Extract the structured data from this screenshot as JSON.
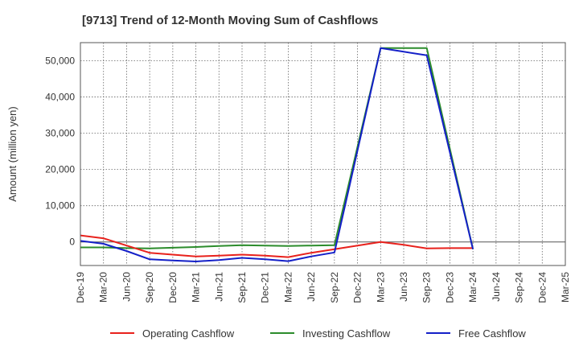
{
  "chart_data": {
    "type": "line",
    "title": "[9713]  Trend of 12-Month Moving Sum of Cashflows",
    "ylabel": "Amount (million yen)",
    "xlabel": "",
    "ylim": [
      -6500,
      55000
    ],
    "yticks": [
      0,
      10000,
      20000,
      30000,
      40000,
      50000
    ],
    "ytick_labels": [
      "0",
      "10,000",
      "20,000",
      "30,000",
      "40,000",
      "50,000"
    ],
    "categories": [
      "Dec-19",
      "Mar-20",
      "Jun-20",
      "Sep-20",
      "Dec-20",
      "Mar-21",
      "Jun-21",
      "Sep-21",
      "Dec-21",
      "Mar-22",
      "Jun-22",
      "Sep-22",
      "Dec-22",
      "Mar-23",
      "Jun-23",
      "Sep-23",
      "Dec-23",
      "Mar-24",
      "Jun-24",
      "Sep-24",
      "Dec-24",
      "Mar-25"
    ],
    "grid": true,
    "legend_position": "bottom",
    "series": [
      {
        "name": "Operating Cashflow",
        "color": "#e8211c",
        "values": [
          1800,
          1000,
          -1000,
          -3000,
          -3500,
          -4000,
          -3800,
          -3500,
          -3800,
          -4200,
          -3000,
          -2000,
          -1000,
          0,
          -800,
          -1800,
          -1700,
          -1700,
          null,
          null,
          null,
          null
        ]
      },
      {
        "name": "Investing Cashflow",
        "color": "#2c8c2c",
        "values": [
          -1500,
          -1500,
          -1700,
          -1800,
          -1600,
          -1400,
          -1100,
          -900,
          -1000,
          -1100,
          -1000,
          -900,
          null,
          53500,
          53500,
          53500,
          null,
          -2000,
          null,
          null,
          null,
          null
        ]
      },
      {
        "name": "Free Cashflow",
        "color": "#1420c8",
        "values": [
          300,
          -500,
          -2500,
          -4800,
          -5100,
          -5400,
          -5000,
          -4400,
          -4800,
          -5300,
          -4000,
          -2900,
          null,
          53500,
          52500,
          51500,
          null,
          -2000,
          null,
          null,
          null,
          null
        ]
      }
    ]
  }
}
